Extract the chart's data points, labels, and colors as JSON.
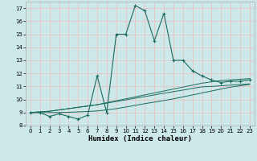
{
  "xlabel": "Humidex (Indice chaleur)",
  "xlim": [
    -0.5,
    23.5
  ],
  "ylim": [
    8,
    17.5
  ],
  "yticks": [
    8,
    9,
    10,
    11,
    12,
    13,
    14,
    15,
    16,
    17
  ],
  "xticks": [
    0,
    1,
    2,
    3,
    4,
    5,
    6,
    7,
    8,
    9,
    10,
    11,
    12,
    13,
    14,
    15,
    16,
    17,
    18,
    19,
    20,
    21,
    22,
    23
  ],
  "bg_color": "#cce8e8",
  "grid_color": "#e8c8c8",
  "line_color": "#1a6b5e",
  "main_series": [
    9.0,
    9.0,
    8.7,
    8.9,
    8.7,
    8.5,
    8.8,
    11.8,
    9.0,
    15.0,
    15.0,
    17.2,
    16.8,
    14.5,
    16.6,
    13.0,
    13.0,
    12.2,
    11.8,
    11.5,
    11.3,
    11.4,
    11.4,
    11.5
  ],
  "trend_series": [
    [
      9.0,
      9.05,
      9.1,
      9.2,
      9.3,
      9.4,
      9.5,
      9.6,
      9.75,
      9.9,
      10.05,
      10.2,
      10.35,
      10.5,
      10.65,
      10.8,
      10.95,
      11.1,
      11.25,
      11.35,
      11.45,
      11.5,
      11.55,
      11.6
    ],
    [
      9.0,
      9.05,
      9.1,
      9.2,
      9.3,
      9.4,
      9.5,
      9.6,
      9.72,
      9.85,
      9.97,
      10.1,
      10.22,
      10.35,
      10.48,
      10.6,
      10.72,
      10.85,
      10.97,
      11.0,
      11.05,
      11.1,
      11.15,
      11.2
    ],
    [
      9.0,
      9.0,
      9.0,
      9.0,
      9.02,
      9.05,
      9.08,
      9.12,
      9.2,
      9.3,
      9.42,
      9.55,
      9.68,
      9.8,
      9.92,
      10.05,
      10.2,
      10.35,
      10.5,
      10.65,
      10.8,
      10.95,
      11.05,
      11.15
    ]
  ]
}
